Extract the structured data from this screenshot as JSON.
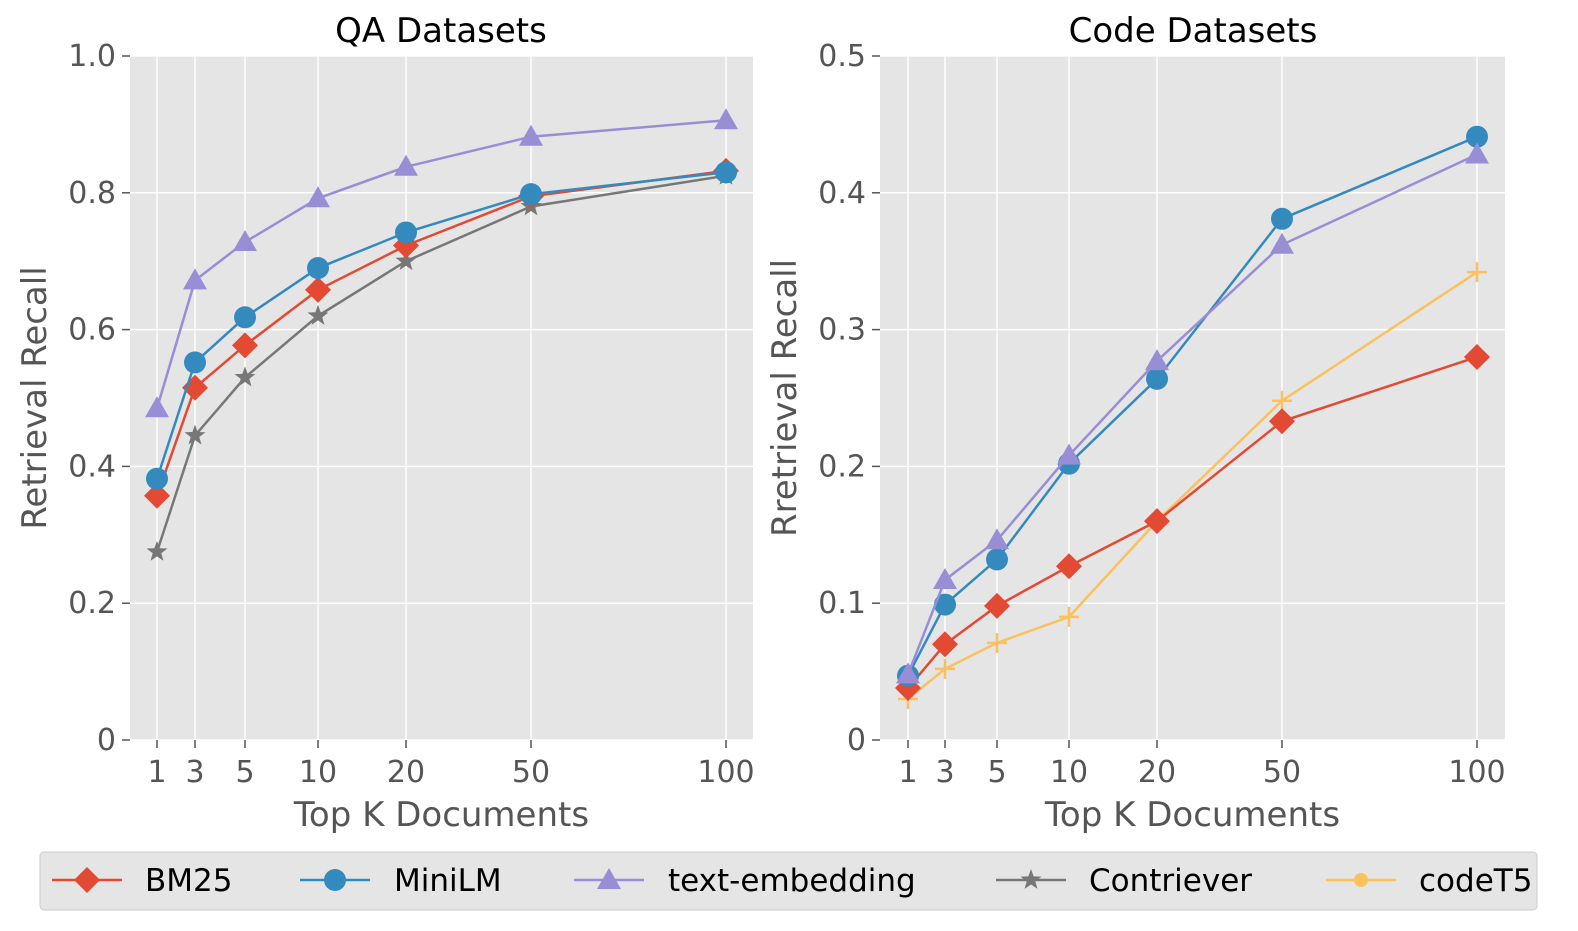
{
  "x_ticks": [
    "1",
    "3",
    "5",
    "10",
    "20",
    "50",
    "100"
  ],
  "legend": [
    {
      "key": "bm25",
      "label": "BM25"
    },
    {
      "key": "minilm",
      "label": "MiniLM"
    },
    {
      "key": "textemb",
      "label": "text-embedding"
    },
    {
      "key": "contriever",
      "label": "Contriever"
    },
    {
      "key": "codet5",
      "label": "codeT5"
    }
  ],
  "series_style": {
    "bm25": {
      "color": "#E24A33",
      "marker": "diamond"
    },
    "minilm": {
      "color": "#348ABD",
      "marker": "circle"
    },
    "textemb": {
      "color": "#988ED5",
      "marker": "triangle"
    },
    "contriever": {
      "color": "#777777",
      "marker": "star"
    },
    "codet5": {
      "color": "#FBC15E",
      "marker": "plus"
    }
  },
  "chart_data": [
    {
      "type": "line",
      "title": "QA Datasets",
      "xlabel": "Top K Documents",
      "ylabel": "Retrieval Recall",
      "ylim": [
        0,
        1.0
      ],
      "yticks": [
        0,
        0.2,
        0.4,
        0.6,
        0.8,
        1.0
      ],
      "ytick_labels": [
        "0",
        "0.2",
        "0.4",
        "0.6",
        "0.8",
        "1.0"
      ],
      "x": [
        1,
        3,
        5,
        10,
        20,
        50,
        100
      ],
      "grid": true,
      "series": [
        {
          "key": "contriever",
          "name": "Contriever",
          "values": [
            0.275,
            0.445,
            0.53,
            0.62,
            0.7,
            0.78,
            0.825
          ]
        },
        {
          "key": "bm25",
          "name": "BM25",
          "values": [
            0.357,
            0.515,
            0.577,
            0.658,
            0.723,
            0.795,
            0.832
          ]
        },
        {
          "key": "minilm",
          "name": "MiniLM",
          "values": [
            0.382,
            0.552,
            0.618,
            0.69,
            0.742,
            0.798,
            0.83
          ]
        },
        {
          "key": "textemb",
          "name": "text-embedding",
          "values": [
            0.485,
            0.672,
            0.728,
            0.792,
            0.838,
            0.882,
            0.906
          ]
        }
      ]
    },
    {
      "type": "line",
      "title": "Code Datasets",
      "xlabel": "Top K Documents",
      "ylabel": "Rretrieval Recall",
      "ylim": [
        0,
        0.5
      ],
      "yticks": [
        0,
        0.1,
        0.2,
        0.3,
        0.4,
        0.5
      ],
      "ytick_labels": [
        "0",
        "0.1",
        "0.2",
        "0.3",
        "0.4",
        "0.5"
      ],
      "x": [
        1,
        3,
        5,
        10,
        20,
        50,
        100
      ],
      "grid": true,
      "series": [
        {
          "key": "codet5",
          "name": "codeT5",
          "values": [
            0.03,
            0.052,
            0.071,
            0.09,
            0.16,
            0.248,
            0.342
          ]
        },
        {
          "key": "bm25",
          "name": "BM25",
          "values": [
            0.038,
            0.07,
            0.098,
            0.127,
            0.16,
            0.233,
            0.28
          ]
        },
        {
          "key": "minilm",
          "name": "MiniLM",
          "values": [
            0.047,
            0.099,
            0.132,
            0.202,
            0.264,
            0.381,
            0.441
          ]
        },
        {
          "key": "textemb",
          "name": "text-embedding",
          "values": [
            0.048,
            0.117,
            0.146,
            0.208,
            0.277,
            0.362,
            0.428
          ]
        }
      ]
    }
  ]
}
